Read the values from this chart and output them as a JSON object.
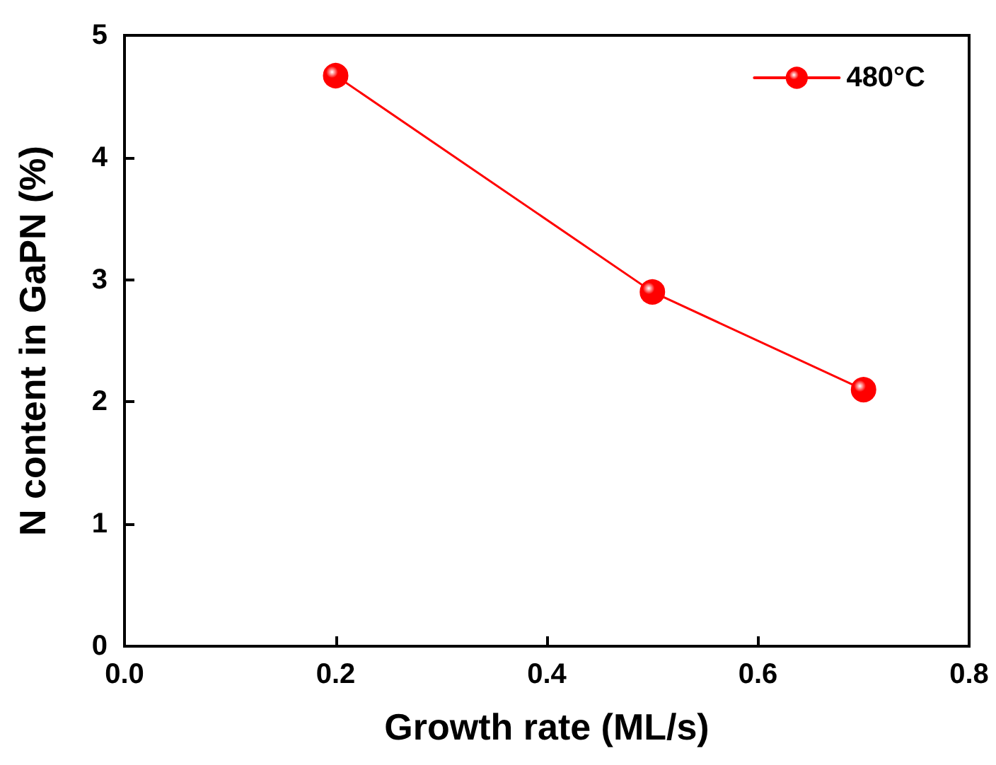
{
  "chart_data": {
    "type": "line",
    "xlabel": "Growth rate (ML/s)",
    "ylabel": "N content in GaPN (%)",
    "x": [
      0.2,
      0.5,
      0.7
    ],
    "series": [
      {
        "name": "480°C",
        "color": "#ff0000",
        "values": [
          4.67,
          2.9,
          2.1
        ]
      }
    ],
    "xlim": [
      0,
      0.8
    ],
    "xticks": [
      {
        "value": 0,
        "label": "0.0"
      },
      0.2,
      0.4,
      0.6,
      0.8
    ],
    "ylim": [
      0,
      5
    ],
    "yticks": [
      0,
      1,
      2,
      3,
      4,
      5
    ],
    "grid": false,
    "legend": "top right",
    "marker": "circle",
    "line_style": "solid"
  }
}
